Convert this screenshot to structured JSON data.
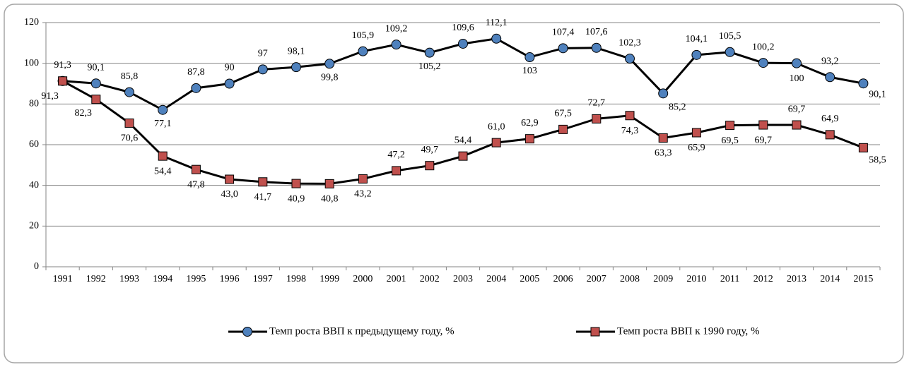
{
  "chart_data": {
    "type": "line",
    "categories": [
      "1991",
      "1992",
      "1993",
      "1994",
      "1995",
      "1996",
      "1997",
      "1998",
      "1999",
      "2000",
      "2001",
      "2002",
      "2003",
      "2004",
      "2005",
      "2006",
      "2007",
      "2008",
      "2009",
      "2010",
      "2011",
      "2012",
      "2013",
      "2014",
      "2015"
    ],
    "series": [
      {
        "name": "Темп роста ВВП к предыдущему году, %",
        "color": "#4f81bd",
        "marker": "circle",
        "values": [
          91.3,
          90.1,
          85.8,
          77.1,
          87.8,
          90,
          97,
          98.1,
          99.8,
          105.9,
          109.2,
          105.2,
          109.6,
          112.1,
          103,
          107.4,
          107.6,
          102.3,
          85.2,
          104.1,
          105.5,
          100.2,
          100,
          93.2,
          90.1
        ],
        "value_labels": [
          "91,3",
          "90,1",
          "85,8",
          "77,1",
          "87,8",
          "90",
          "97",
          "98,1",
          "99,8",
          "105,9",
          "109,2",
          "105,2",
          "109,6",
          "112,1",
          "103",
          "107,4",
          "107,6",
          "102,3",
          "85,2",
          "104,1",
          "105,5",
          "100,2",
          "100",
          "93,2",
          "90,1"
        ]
      },
      {
        "name": "Темп роста ВВП к 1990 году, %",
        "color": "#c0504d",
        "marker": "square",
        "values": [
          91.3,
          82.3,
          70.6,
          54.4,
          47.8,
          43.0,
          41.7,
          40.9,
          40.8,
          43.2,
          47.2,
          49.7,
          54.4,
          61.0,
          62.9,
          67.5,
          72.7,
          74.3,
          63.3,
          65.9,
          69.5,
          69.7,
          69.7,
          64.9,
          58.5
        ],
        "value_labels": [
          "91,3",
          "82,3",
          "70,6",
          "54,4",
          "47,8",
          "43,0",
          "41,7",
          "40,9",
          "40,8",
          "43,2",
          "47,2",
          "49,7",
          "54,4",
          "61,0",
          "62,9",
          "67,5",
          "72,7",
          "74,3",
          "63,3",
          "65,9",
          "69,5",
          "69,7",
          "69,7",
          "64,9",
          "58,5"
        ]
      }
    ],
    "ylim": [
      0,
      120
    ],
    "yticks": [
      0,
      20,
      40,
      60,
      80,
      100,
      120
    ],
    "grid": true
  }
}
